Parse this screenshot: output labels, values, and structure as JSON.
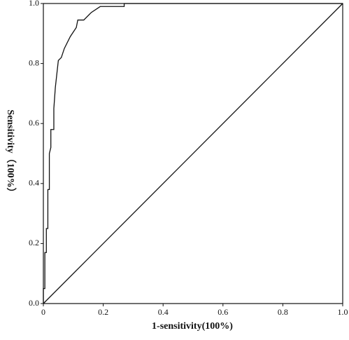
{
  "chart_data": {
    "type": "line",
    "x_label": "1-sensitivity(100%)",
    "y_label": "Sensitivity（100%）",
    "xlim": [
      0,
      1
    ],
    "ylim": [
      0,
      1
    ],
    "xticks": [
      0,
      0.2,
      0.4,
      0.6,
      0.8,
      {
        "value": 1,
        "label": "1.0"
      }
    ],
    "yticks": [
      {
        "value": 0,
        "label": "0.0"
      },
      0.2,
      0.4,
      0.6,
      0.8,
      {
        "value": 1,
        "label": "1.0"
      }
    ],
    "series": [
      {
        "color": "#111111",
        "x": [
          0,
          0,
          0.005,
          0.005,
          0.01,
          0.01,
          0.015,
          0.015,
          0.02,
          0.02,
          0.025,
          0.025,
          0.035,
          0.035,
          0.04,
          0.05,
          0.06,
          0.07,
          0.09,
          0.11,
          0.115,
          0.135,
          0.16,
          0.19,
          0.27,
          0.27,
          1
        ],
        "values": [
          0,
          0.05,
          0.05,
          0.17,
          0.17,
          0.25,
          0.25,
          0.38,
          0.38,
          0.5,
          0.52,
          0.58,
          0.58,
          0.65,
          0.72,
          0.81,
          0.82,
          0.85,
          0.89,
          0.92,
          0.945,
          0.945,
          0.97,
          0.99,
          0.99,
          1,
          1
        ]
      },
      {
        "color": "#111111",
        "x": [
          0,
          1
        ],
        "values": [
          0,
          1
        ]
      }
    ]
  }
}
